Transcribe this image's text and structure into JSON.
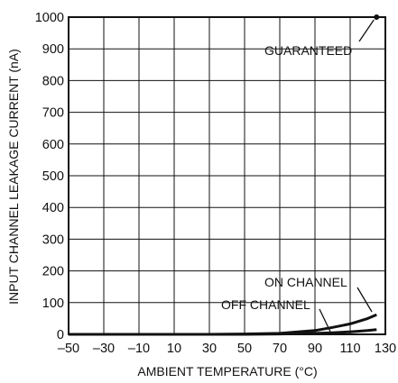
{
  "chart_data": {
    "type": "line",
    "title": "",
    "xlabel": "AMBIENT TEMPERATURE (°C)",
    "ylabel": "INPUT CHANNEL LEAKAGE CURRENT (nA)",
    "xlim": [
      -50,
      130
    ],
    "ylim": [
      0,
      1000
    ],
    "x_ticks": [
      -50,
      -30,
      -10,
      10,
      30,
      50,
      70,
      90,
      110,
      130
    ],
    "x_tick_labels": [
      "–50",
      "–30",
      "–10",
      "10",
      "30",
      "50",
      "70",
      "90",
      "110",
      "130"
    ],
    "y_ticks": [
      0,
      100,
      200,
      300,
      400,
      500,
      600,
      700,
      800,
      900,
      1000
    ],
    "y_tick_labels": [
      "0",
      "100",
      "200",
      "300",
      "400",
      "500",
      "600",
      "700",
      "800",
      "900",
      "1000"
    ],
    "grid": true,
    "series": [
      {
        "name": "ON CHANNEL",
        "x": [
          -50,
          -30,
          -10,
          10,
          30,
          50,
          70,
          90,
          100,
          110,
          120,
          125
        ],
        "y": [
          0,
          0,
          0,
          0,
          0,
          1,
          3,
          12,
          22,
          33,
          50,
          62
        ]
      },
      {
        "name": "OFF CHANNEL",
        "x": [
          -50,
          -30,
          -10,
          10,
          30,
          50,
          70,
          90,
          100,
          110,
          120,
          125
        ],
        "y": [
          0,
          0,
          0,
          0,
          0,
          0,
          1,
          3,
          5,
          8,
          12,
          15
        ]
      }
    ],
    "annotations": [
      {
        "text": "GUARANTEED",
        "x": 125,
        "y": 1000
      },
      {
        "text": "ON CHANNEL",
        "x": 118,
        "y": 57
      },
      {
        "text": "OFF CHANNEL",
        "x": 98,
        "y": 4
      }
    ]
  }
}
